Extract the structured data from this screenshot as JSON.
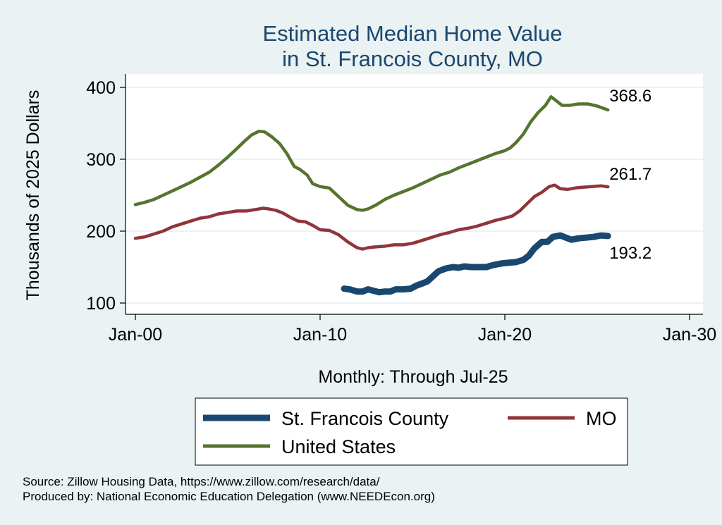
{
  "chart_data": {
    "type": "line",
    "title": [
      "Estimated Median Home Value",
      "in St. Francois County, MO"
    ],
    "ylabel": "Thousands of 2025 Dollars",
    "xnote": "Monthly: Through Jul-25",
    "xlim": [
      2000,
      2030
    ],
    "ylim": [
      100,
      400
    ],
    "x_ticks": [
      {
        "value": 2000,
        "label": "Jan-00"
      },
      {
        "value": 2010,
        "label": "Jan-10"
      },
      {
        "value": 2020,
        "label": "Jan-20"
      },
      {
        "value": 2030,
        "label": "Jan-30"
      }
    ],
    "y_ticks": [
      {
        "value": 100,
        "label": "100"
      },
      {
        "value": 200,
        "label": "200"
      },
      {
        "value": 300,
        "label": "300"
      },
      {
        "value": 400,
        "label": "400"
      }
    ],
    "grid": true,
    "legend_position": "bottom",
    "series": [
      {
        "name": "St. Francois County",
        "color": "#1a476f",
        "end_label": "193.2",
        "points": [
          [
            2011.3,
            120
          ],
          [
            2011.6,
            119
          ],
          [
            2012.0,
            116
          ],
          [
            2012.3,
            116
          ],
          [
            2012.6,
            119
          ],
          [
            2012.9,
            117
          ],
          [
            2013.2,
            115
          ],
          [
            2013.5,
            116
          ],
          [
            2013.8,
            116
          ],
          [
            2014.1,
            119
          ],
          [
            2014.5,
            119
          ],
          [
            2014.9,
            120
          ],
          [
            2015.2,
            124
          ],
          [
            2015.5,
            127
          ],
          [
            2015.8,
            130
          ],
          [
            2016.1,
            137
          ],
          [
            2016.4,
            144
          ],
          [
            2016.8,
            148
          ],
          [
            2017.2,
            150
          ],
          [
            2017.5,
            149
          ],
          [
            2017.8,
            151
          ],
          [
            2018.2,
            150
          ],
          [
            2018.6,
            150
          ],
          [
            2019.0,
            150
          ],
          [
            2019.4,
            153
          ],
          [
            2019.8,
            155
          ],
          [
            2020.2,
            156
          ],
          [
            2020.6,
            157
          ],
          [
            2021.0,
            160
          ],
          [
            2021.3,
            166
          ],
          [
            2021.6,
            176
          ],
          [
            2022.0,
            185
          ],
          [
            2022.3,
            185
          ],
          [
            2022.6,
            192
          ],
          [
            2023.0,
            194
          ],
          [
            2023.3,
            191
          ],
          [
            2023.6,
            188
          ],
          [
            2024.0,
            190
          ],
          [
            2024.4,
            191
          ],
          [
            2024.8,
            192
          ],
          [
            2025.2,
            194
          ],
          [
            2025.58,
            193.2
          ]
        ]
      },
      {
        "name": "MO",
        "color": "#90353b",
        "end_label": "261.7",
        "points": [
          [
            2000.0,
            190
          ],
          [
            2000.5,
            192
          ],
          [
            2001.0,
            196
          ],
          [
            2001.5,
            200
          ],
          [
            2002.0,
            206
          ],
          [
            2002.5,
            210
          ],
          [
            2003.0,
            214
          ],
          [
            2003.5,
            218
          ],
          [
            2004.0,
            220
          ],
          [
            2004.5,
            224
          ],
          [
            2005.0,
            226
          ],
          [
            2005.5,
            228
          ],
          [
            2006.0,
            228
          ],
          [
            2006.5,
            230
          ],
          [
            2006.9,
            232
          ],
          [
            2007.2,
            231
          ],
          [
            2007.6,
            229
          ],
          [
            2008.0,
            225
          ],
          [
            2008.4,
            219
          ],
          [
            2008.8,
            214
          ],
          [
            2009.2,
            213
          ],
          [
            2009.6,
            208
          ],
          [
            2010.0,
            202
          ],
          [
            2010.5,
            201
          ],
          [
            2011.0,
            195
          ],
          [
            2011.5,
            185
          ],
          [
            2012.0,
            177
          ],
          [
            2012.3,
            175
          ],
          [
            2012.6,
            177
          ],
          [
            2013.0,
            178
          ],
          [
            2013.5,
            179
          ],
          [
            2014.0,
            181
          ],
          [
            2014.5,
            181
          ],
          [
            2015.0,
            183
          ],
          [
            2015.5,
            187
          ],
          [
            2016.0,
            191
          ],
          [
            2016.5,
            195
          ],
          [
            2017.0,
            198
          ],
          [
            2017.5,
            202
          ],
          [
            2018.0,
            204
          ],
          [
            2018.5,
            207
          ],
          [
            2019.0,
            211
          ],
          [
            2019.5,
            215
          ],
          [
            2020.0,
            218
          ],
          [
            2020.4,
            221
          ],
          [
            2020.8,
            228
          ],
          [
            2021.2,
            238
          ],
          [
            2021.6,
            248
          ],
          [
            2022.0,
            254
          ],
          [
            2022.4,
            262
          ],
          [
            2022.7,
            264
          ],
          [
            2023.0,
            259
          ],
          [
            2023.4,
            258
          ],
          [
            2023.8,
            260
          ],
          [
            2024.2,
            261
          ],
          [
            2024.7,
            262
          ],
          [
            2025.2,
            263
          ],
          [
            2025.58,
            261.7
          ]
        ]
      },
      {
        "name": "United States",
        "color": "#55752f",
        "end_label": "368.6",
        "points": [
          [
            2000.0,
            237
          ],
          [
            2000.5,
            240
          ],
          [
            2001.0,
            244
          ],
          [
            2001.5,
            250
          ],
          [
            2002.0,
            256
          ],
          [
            2002.5,
            262
          ],
          [
            2003.0,
            268
          ],
          [
            2003.5,
            275
          ],
          [
            2004.0,
            282
          ],
          [
            2004.5,
            292
          ],
          [
            2005.0,
            303
          ],
          [
            2005.5,
            315
          ],
          [
            2005.9,
            325
          ],
          [
            2006.3,
            334
          ],
          [
            2006.7,
            339
          ],
          [
            2007.0,
            338
          ],
          [
            2007.4,
            331
          ],
          [
            2007.8,
            322
          ],
          [
            2008.2,
            308
          ],
          [
            2008.6,
            290
          ],
          [
            2008.9,
            286
          ],
          [
            2009.3,
            278
          ],
          [
            2009.6,
            266
          ],
          [
            2010.0,
            262
          ],
          [
            2010.5,
            260
          ],
          [
            2011.0,
            248
          ],
          [
            2011.5,
            236
          ],
          [
            2012.0,
            230
          ],
          [
            2012.3,
            229
          ],
          [
            2012.6,
            231
          ],
          [
            2013.0,
            236
          ],
          [
            2013.5,
            244
          ],
          [
            2014.0,
            250
          ],
          [
            2014.5,
            255
          ],
          [
            2015.0,
            260
          ],
          [
            2015.5,
            266
          ],
          [
            2016.0,
            272
          ],
          [
            2016.5,
            278
          ],
          [
            2017.0,
            282
          ],
          [
            2017.5,
            288
          ],
          [
            2018.0,
            293
          ],
          [
            2018.5,
            298
          ],
          [
            2019.0,
            303
          ],
          [
            2019.5,
            308
          ],
          [
            2020.0,
            312
          ],
          [
            2020.3,
            316
          ],
          [
            2020.6,
            323
          ],
          [
            2021.0,
            335
          ],
          [
            2021.4,
            352
          ],
          [
            2021.8,
            365
          ],
          [
            2022.2,
            375
          ],
          [
            2022.5,
            387
          ],
          [
            2022.8,
            381
          ],
          [
            2023.1,
            375
          ],
          [
            2023.5,
            375
          ],
          [
            2024.0,
            377
          ],
          [
            2024.5,
            377
          ],
          [
            2025.0,
            374
          ],
          [
            2025.58,
            368.6
          ]
        ]
      }
    ]
  },
  "legend": {
    "items": [
      {
        "label": "St. Francois County",
        "color": "#1a476f"
      },
      {
        "label": "MO",
        "color": "#90353b"
      },
      {
        "label": "United States",
        "color": "#55752f"
      }
    ]
  },
  "footer": {
    "source": "Source: Zillow Housing Data, https://www.zillow.com/research/data/",
    "produced": "Produced by: National Economic Education Delegation (www.NEEDEcon.org)"
  }
}
